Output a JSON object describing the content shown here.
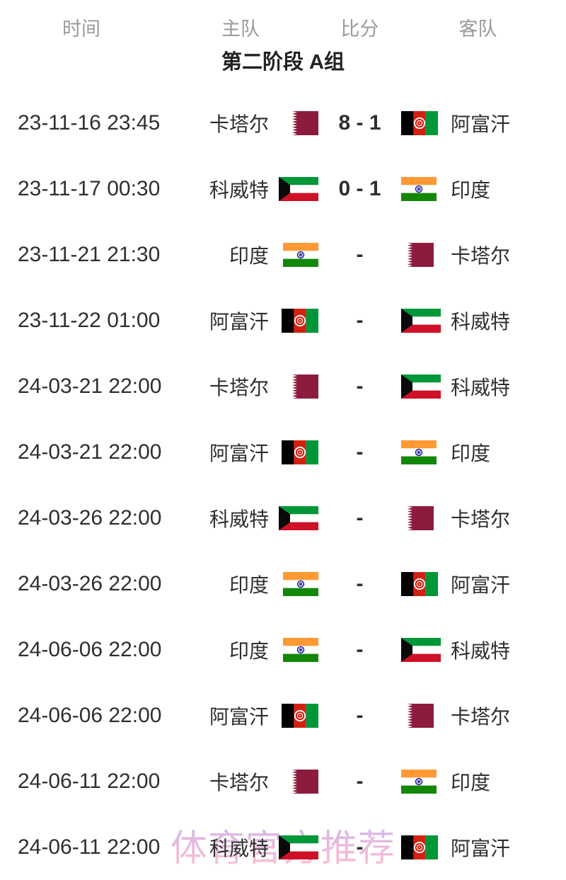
{
  "page": {
    "background": "#ffffff"
  },
  "header": {
    "columns": [
      "时间",
      "主队",
      "比分",
      "客队"
    ]
  },
  "group": {
    "title": "第二阶段 A组"
  },
  "watermark": {
    "text": "体育官方推荐",
    "color_top": "#bfa7e6",
    "color_bottom": "#f9aecb"
  },
  "flags": {
    "qatar": {
      "label": "卡塔尔",
      "maroon": "#8d1b3d",
      "white": "#ffffff"
    },
    "afghanistan": {
      "label": "阿富汗",
      "black": "#000000",
      "red": "#d32011",
      "green": "#009739",
      "white": "#ffffff"
    },
    "kuwait": {
      "label": "科威特",
      "green": "#009739",
      "white": "#ffffff",
      "red": "#ce1126",
      "black": "#0a0a0a"
    },
    "india": {
      "label": "印度",
      "saffron": "#ff9933",
      "white": "#ffffff",
      "green": "#138808",
      "navy": "#06038d"
    }
  },
  "matches": [
    {
      "time": "23-11-16 23:45",
      "home": "卡塔尔",
      "home_flag": "qatar",
      "score": "8 - 1",
      "away": "阿富汗",
      "away_flag": "afghanistan"
    },
    {
      "time": "23-11-17 00:30",
      "home": "科威特",
      "home_flag": "kuwait",
      "score": "0 - 1",
      "away": "印度",
      "away_flag": "india"
    },
    {
      "time": "23-11-21 21:30",
      "home": "印度",
      "home_flag": "india",
      "score": "-",
      "away": "卡塔尔",
      "away_flag": "qatar"
    },
    {
      "time": "23-11-22 01:00",
      "home": "阿富汗",
      "home_flag": "afghanistan",
      "score": "-",
      "away": "科威特",
      "away_flag": "kuwait"
    },
    {
      "time": "24-03-21 22:00",
      "home": "卡塔尔",
      "home_flag": "qatar",
      "score": "-",
      "away": "科威特",
      "away_flag": "kuwait"
    },
    {
      "time": "24-03-21 22:00",
      "home": "阿富汗",
      "home_flag": "afghanistan",
      "score": "-",
      "away": "印度",
      "away_flag": "india"
    },
    {
      "time": "24-03-26 22:00",
      "home": "科威特",
      "home_flag": "kuwait",
      "score": "-",
      "away": "卡塔尔",
      "away_flag": "qatar"
    },
    {
      "time": "24-03-26 22:00",
      "home": "印度",
      "home_flag": "india",
      "score": "-",
      "away": "阿富汗",
      "away_flag": "afghanistan"
    },
    {
      "time": "24-06-06 22:00",
      "home": "印度",
      "home_flag": "india",
      "score": "-",
      "away": "科威特",
      "away_flag": "kuwait"
    },
    {
      "time": "24-06-06 22:00",
      "home": "阿富汗",
      "home_flag": "afghanistan",
      "score": "-",
      "away": "卡塔尔",
      "away_flag": "qatar"
    },
    {
      "time": "24-06-11 22:00",
      "home": "卡塔尔",
      "home_flag": "qatar",
      "score": "-",
      "away": "印度",
      "away_flag": "india"
    },
    {
      "time": "24-06-11 22:00",
      "home": "科威特",
      "home_flag": "kuwait",
      "score": "-",
      "away": "阿富汗",
      "away_flag": "afghanistan"
    }
  ]
}
